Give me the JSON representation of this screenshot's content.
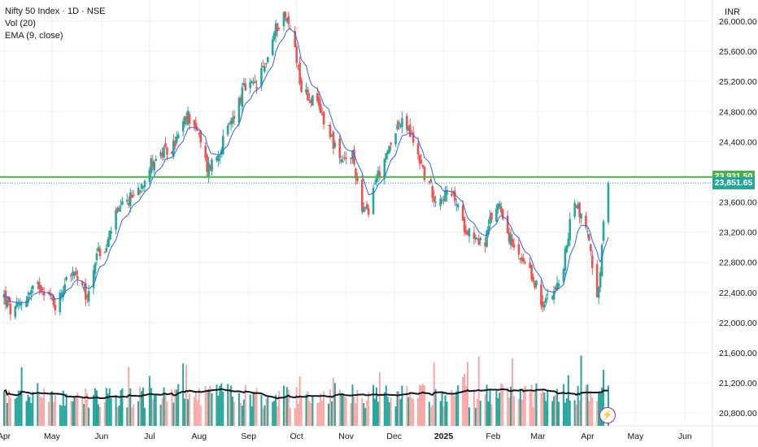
{
  "legend": {
    "symbol": "Nifty 50 Index · 1D · NSE",
    "volume": "Vol (20)",
    "ema": "EMA (9, close)"
  },
  "currency": "INR",
  "price_tags": {
    "resistance": "23,931.50",
    "last": "23,851.65"
  },
  "colors": {
    "up": "#26a69a",
    "down": "#ef5350",
    "vol_up": "#26a69a",
    "vol_down": "#f7a9a7",
    "ema": "#2962ff",
    "vol_ma": "#131722",
    "resistance": "#4caf50",
    "last_tag": "#26a69a",
    "grid": "#eef0f3"
  },
  "chart_data": {
    "type": "candlestick",
    "y_ticks": [
      "26,000.00",
      "25,600.00",
      "25,200.00",
      "24,800.00",
      "24,400.00",
      "23,600.00",
      "23,200.00",
      "22,800.00",
      "22,400.00",
      "22,000.00",
      "21,600.00",
      "21,200.00",
      "20,800.00"
    ],
    "y_tick_values": [
      26000,
      25600,
      25200,
      24800,
      24400,
      23600,
      23200,
      22800,
      22400,
      22000,
      21600,
      21200,
      20800
    ],
    "x_ticks": [
      "Apr",
      "May",
      "Jun",
      "Jul",
      "Aug",
      "Sep",
      "Oct",
      "Nov",
      "Dec",
      "2025",
      "Feb",
      "Mar",
      "Apr",
      "May",
      "Jun"
    ],
    "x_tick_days": [
      0,
      30,
      61,
      91,
      122,
      153,
      183,
      214,
      244,
      275,
      306,
      334,
      365,
      395,
      426
    ],
    "first_date": "2024-04-01",
    "ylim": [
      20630,
      26280
    ],
    "resistance_level": 23931.5,
    "last_price": 23851.65,
    "anchors": [
      {
        "day": 0,
        "close": 22350
      },
      {
        "day": 5,
        "close": 22100
      },
      {
        "day": 12,
        "close": 22300
      },
      {
        "day": 22,
        "close": 22500
      },
      {
        "day": 25,
        "close": 22450
      },
      {
        "day": 33,
        "close": 22200
      },
      {
        "day": 40,
        "close": 22700
      },
      {
        "day": 45,
        "close": 22600
      },
      {
        "day": 52,
        "close": 22300
      },
      {
        "day": 58,
        "close": 22950
      },
      {
        "day": 63,
        "close": 22900
      },
      {
        "day": 68,
        "close": 23350
      },
      {
        "day": 75,
        "close": 23550
      },
      {
        "day": 85,
        "close": 23800
      },
      {
        "day": 93,
        "close": 24150
      },
      {
        "day": 105,
        "close": 24300
      },
      {
        "day": 115,
        "close": 24750
      },
      {
        "day": 120,
        "close": 24600
      },
      {
        "day": 127,
        "close": 24050
      },
      {
        "day": 133,
        "close": 24200
      },
      {
        "day": 140,
        "close": 24550
      },
      {
        "day": 150,
        "close": 25100
      },
      {
        "day": 158,
        "close": 25150
      },
      {
        "day": 163,
        "close": 25400
      },
      {
        "day": 170,
        "close": 25900
      },
      {
        "day": 175,
        "close": 26100
      },
      {
        "day": 181,
        "close": 25800
      },
      {
        "day": 186,
        "close": 25100
      },
      {
        "day": 195,
        "close": 24900
      },
      {
        "day": 203,
        "close": 24600
      },
      {
        "day": 210,
        "close": 24100
      },
      {
        "day": 218,
        "close": 24200
      },
      {
        "day": 224,
        "close": 23550
      },
      {
        "day": 228,
        "close": 23400
      },
      {
        "day": 232,
        "close": 23900
      },
      {
        "day": 238,
        "close": 24100
      },
      {
        "day": 245,
        "close": 24600
      },
      {
        "day": 251,
        "close": 24650
      },
      {
        "day": 258,
        "close": 24300
      },
      {
        "day": 264,
        "close": 23900
      },
      {
        "day": 270,
        "close": 23650
      },
      {
        "day": 276,
        "close": 23700
      },
      {
        "day": 282,
        "close": 23650
      },
      {
        "day": 287,
        "close": 23300
      },
      {
        "day": 295,
        "close": 23150
      },
      {
        "day": 300,
        "close": 23000
      },
      {
        "day": 305,
        "close": 23400
      },
      {
        "day": 310,
        "close": 23600
      },
      {
        "day": 315,
        "close": 23200
      },
      {
        "day": 320,
        "close": 22900
      },
      {
        "day": 327,
        "close": 22700
      },
      {
        "day": 333,
        "close": 22500
      },
      {
        "day": 337,
        "close": 22150
      },
      {
        "day": 340,
        "close": 22400
      },
      {
        "day": 344,
        "close": 22450
      },
      {
        "day": 348,
        "close": 22500
      },
      {
        "day": 354,
        "close": 23300
      },
      {
        "day": 357,
        "close": 23650
      },
      {
        "day": 361,
        "close": 23400
      },
      {
        "day": 366,
        "close": 23150
      },
      {
        "day": 370,
        "close": 22200
      },
      {
        "day": 372,
        "close": 22400
      },
      {
        "day": 375,
        "close": 23300
      },
      {
        "day": 378,
        "close": 23850
      }
    ]
  }
}
